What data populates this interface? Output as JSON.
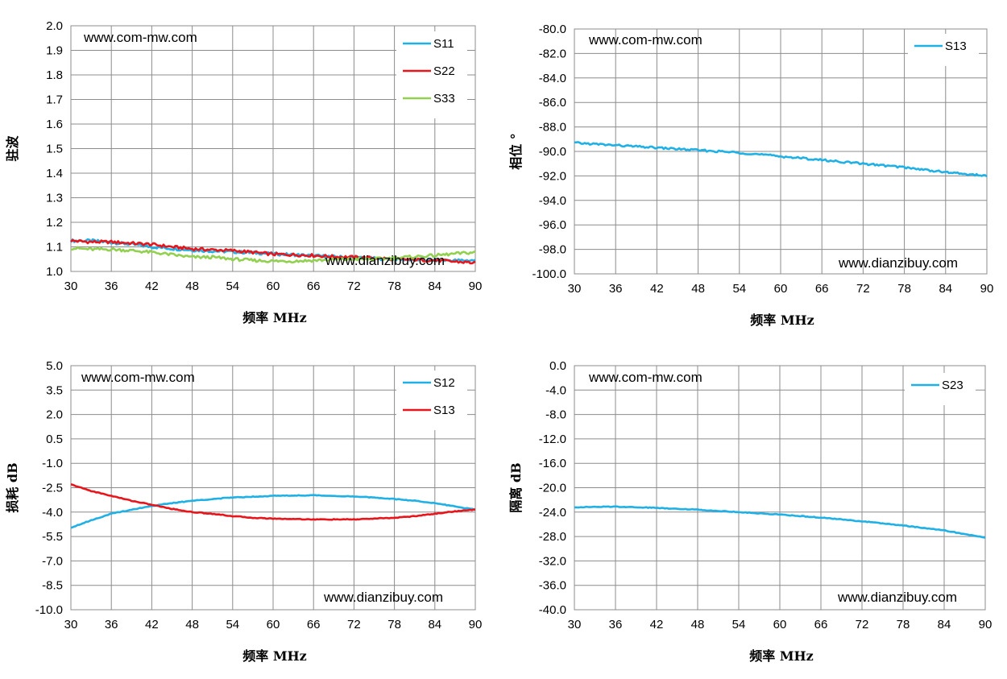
{
  "chart_data": [
    {
      "id": "vswr",
      "type": "line",
      "title": "",
      "xlabel": "频率 MHz",
      "ylabel": "驻波",
      "xlim": [
        30,
        90
      ],
      "ylim": [
        1.0,
        2.0
      ],
      "xticks": [
        30,
        36,
        42,
        48,
        54,
        60,
        66,
        72,
        78,
        84,
        90
      ],
      "yticks": [
        1.0,
        1.1,
        1.2,
        1.3,
        1.4,
        1.5,
        1.6,
        1.7,
        1.8,
        1.9,
        2.0
      ],
      "ytick_decimals": 1,
      "watermark_top": "www.com-mw.com",
      "watermark_bottom": "www.dianzibuy.com",
      "legend_position": "top-right",
      "grid": true,
      "series": [
        {
          "name": "S11",
          "color": "#1fb0e6",
          "x": [
            30,
            33,
            36,
            39,
            42,
            45,
            48,
            51,
            54,
            57,
            60,
            63,
            66,
            69,
            72,
            75,
            78,
            81,
            84,
            87,
            90
          ],
          "y": [
            1.125,
            1.125,
            1.118,
            1.11,
            1.1,
            1.093,
            1.087,
            1.083,
            1.08,
            1.076,
            1.072,
            1.068,
            1.064,
            1.06,
            1.056,
            1.053,
            1.05,
            1.048,
            1.046,
            1.045,
            1.045
          ]
        },
        {
          "name": "S22",
          "color": "#e8161c",
          "x": [
            30,
            33,
            36,
            39,
            42,
            45,
            48,
            51,
            54,
            57,
            60,
            63,
            66,
            69,
            72,
            75,
            78,
            81,
            84,
            87,
            90
          ],
          "y": [
            1.125,
            1.12,
            1.12,
            1.115,
            1.11,
            1.1,
            1.092,
            1.088,
            1.085,
            1.078,
            1.07,
            1.068,
            1.065,
            1.06,
            1.058,
            1.055,
            1.05,
            1.048,
            1.045,
            1.04,
            1.035
          ]
        },
        {
          "name": "S33",
          "color": "#92d050",
          "x": [
            30,
            33,
            36,
            39,
            42,
            45,
            48,
            51,
            54,
            57,
            60,
            63,
            66,
            69,
            72,
            75,
            78,
            81,
            84,
            87,
            90
          ],
          "y": [
            1.095,
            1.09,
            1.09,
            1.085,
            1.078,
            1.068,
            1.058,
            1.058,
            1.05,
            1.045,
            1.042,
            1.042,
            1.045,
            1.048,
            1.05,
            1.05,
            1.055,
            1.06,
            1.065,
            1.072,
            1.078
          ]
        }
      ]
    },
    {
      "id": "phase",
      "type": "line",
      "title": "",
      "xlabel": "频率 MHz",
      "ylabel": "相位 °",
      "xlim": [
        30,
        90
      ],
      "ylim": [
        -100,
        -80
      ],
      "xticks": [
        30,
        36,
        42,
        48,
        54,
        60,
        66,
        72,
        78,
        84,
        90
      ],
      "yticks": [
        -100,
        -98,
        -96,
        -94,
        -92,
        -90,
        -88,
        -86,
        -84,
        -82,
        -80
      ],
      "ytick_decimals": 1,
      "watermark_top": "www.com-mw.com",
      "watermark_bottom": "www.dianzibuy.com",
      "legend_position": "top-right",
      "grid": true,
      "series": [
        {
          "name": "S13",
          "color": "#1fb0e6",
          "x": [
            30,
            36,
            42,
            48,
            54,
            60,
            66,
            72,
            78,
            84,
            90
          ],
          "y": [
            -89.3,
            -89.5,
            -89.7,
            -89.9,
            -90.1,
            -90.4,
            -90.7,
            -91.0,
            -91.3,
            -91.7,
            -92.0
          ]
        }
      ]
    },
    {
      "id": "loss",
      "type": "line",
      "title": "",
      "xlabel": "频率 MHz",
      "ylabel": "损耗 dB",
      "xlim": [
        30,
        90
      ],
      "ylim": [
        -10,
        5
      ],
      "xticks": [
        30,
        36,
        42,
        48,
        54,
        60,
        66,
        72,
        78,
        84,
        90
      ],
      "yticks": [
        -10.0,
        -8.5,
        -7.0,
        -5.5,
        -4.0,
        -2.5,
        -1.0,
        0.5,
        2.0,
        3.5,
        5.0
      ],
      "ytick_decimals": 1,
      "watermark_top": "www.com-mw.com",
      "watermark_bottom": "www.dianzibuy.com",
      "legend_position": "top-right",
      "grid": true,
      "series": [
        {
          "name": "S12",
          "color": "#1fb0e6",
          "x": [
            30,
            33,
            36,
            39,
            42,
            45,
            48,
            51,
            54,
            57,
            60,
            63,
            66,
            69,
            72,
            75,
            78,
            81,
            84,
            87,
            90
          ],
          "y": [
            -4.95,
            -4.5,
            -4.1,
            -3.85,
            -3.62,
            -3.45,
            -3.3,
            -3.2,
            -3.1,
            -3.05,
            -3.0,
            -2.98,
            -2.97,
            -3.0,
            -3.05,
            -3.1,
            -3.2,
            -3.3,
            -3.45,
            -3.65,
            -3.85
          ]
        },
        {
          "name": "S13",
          "color": "#e8161c",
          "x": [
            30,
            33,
            36,
            39,
            42,
            45,
            48,
            51,
            54,
            57,
            60,
            63,
            66,
            69,
            72,
            75,
            78,
            81,
            84,
            87,
            90
          ],
          "y": [
            -2.3,
            -2.7,
            -3.0,
            -3.3,
            -3.55,
            -3.8,
            -4.0,
            -4.1,
            -4.25,
            -4.35,
            -4.4,
            -4.42,
            -4.45,
            -4.45,
            -4.45,
            -4.4,
            -4.35,
            -4.25,
            -4.1,
            -3.95,
            -3.85
          ]
        }
      ]
    },
    {
      "id": "isolation",
      "type": "line",
      "title": "",
      "xlabel": "频率 MHz",
      "ylabel": "隔离 dB",
      "xlim": [
        30,
        90
      ],
      "ylim": [
        -40,
        0
      ],
      "xticks": [
        30,
        36,
        42,
        48,
        54,
        60,
        66,
        72,
        78,
        84,
        90
      ],
      "yticks": [
        -40,
        -36,
        -32,
        -28,
        -24,
        -20,
        -16,
        -12,
        -8,
        -4,
        0
      ],
      "ytick_decimals": 1,
      "watermark_top": "www.com-mw.com",
      "watermark_bottom": "www.dianzibuy.com",
      "legend_position": "top-right",
      "grid": true,
      "series": [
        {
          "name": "S23",
          "color": "#1fb0e6",
          "x": [
            30,
            36,
            42,
            48,
            54,
            60,
            66,
            72,
            78,
            84,
            90
          ],
          "y": [
            -23.2,
            -23.1,
            -23.3,
            -23.6,
            -24.0,
            -24.4,
            -24.9,
            -25.5,
            -26.2,
            -27.0,
            -28.2
          ]
        }
      ]
    }
  ]
}
